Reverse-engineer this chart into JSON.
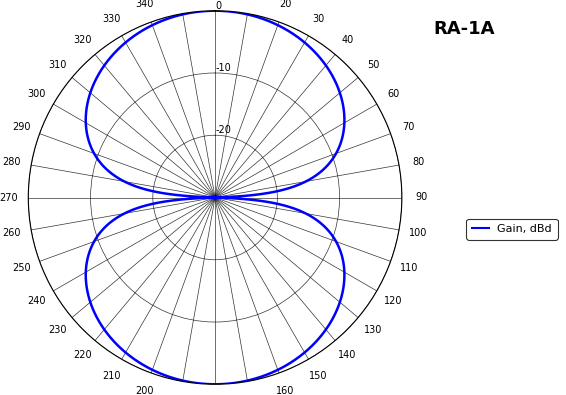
{
  "title": "RA-1A",
  "legend_label": "Gain, dBd",
  "line_color": "#0000FF",
  "line_width": 1.8,
  "r_min_db": -30,
  "r_max_db": 0,
  "r_ticks_db": [
    -30,
    -20,
    -10,
    0
  ],
  "r_tick_labels": [
    "",
    "-20",
    "-10",
    "0"
  ],
  "theta_step": 10,
  "background_color": "#ffffff",
  "grid_color": "#000000"
}
